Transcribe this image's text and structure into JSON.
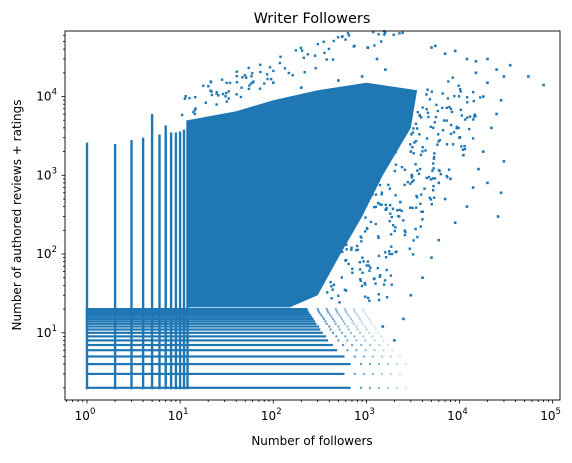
{
  "chart_data": {
    "type": "scatter",
    "title": "Writer Followers",
    "xlabel": "Number of followers",
    "ylabel": "Number of authored reviews + ratings",
    "xscale": "log",
    "yscale": "log",
    "xlim": [
      0.58,
      120000
    ],
    "ylim": [
      1.4,
      68000
    ],
    "grid": false,
    "legend": "none",
    "marker_color": "#1f77b4",
    "x_ticks": [
      {
        "value": 1,
        "base": "10",
        "exp": "0"
      },
      {
        "value": 10,
        "base": "10",
        "exp": "1"
      },
      {
        "value": 100,
        "base": "10",
        "exp": "2"
      },
      {
        "value": 1000,
        "base": "10",
        "exp": "3"
      },
      {
        "value": 10000,
        "base": "10",
        "exp": "4"
      },
      {
        "value": 100000,
        "base": "10",
        "exp": "5"
      }
    ],
    "y_ticks": [
      {
        "value": 10,
        "base": "10",
        "exp": "1"
      },
      {
        "value": 100,
        "base": "10",
        "exp": "2"
      },
      {
        "value": 1000,
        "base": "10",
        "exp": "3"
      },
      {
        "value": 10000,
        "base": "10",
        "exp": "4"
      }
    ],
    "x_columns": [
      {
        "x": 1,
        "ymax": 2600
      },
      {
        "x": 2,
        "ymax": 2500
      },
      {
        "x": 3,
        "ymax": 2800
      },
      {
        "x": 4,
        "ymax": 3000
      },
      {
        "x": 5,
        "ymax": 6000
      },
      {
        "x": 6,
        "ymax": 3300
      },
      {
        "x": 7,
        "ymax": 4300
      },
      {
        "x": 8,
        "ymax": 3500
      },
      {
        "x": 9,
        "ymax": 3500
      },
      {
        "x": 10,
        "ymax": 3600
      },
      {
        "x": 11,
        "ymax": 3800
      },
      {
        "x": 12,
        "ymax": 5000
      }
    ],
    "y_rows": [
      {
        "y": 2,
        "xmax": 700
      },
      {
        "y": 3,
        "xmax": 600
      },
      {
        "y": 4,
        "xmax": 700
      },
      {
        "y": 5,
        "xmax": 600
      },
      {
        "y": 6,
        "xmax": 500
      },
      {
        "y": 7,
        "xmax": 450
      },
      {
        "y": 8,
        "xmax": 400
      },
      {
        "y": 9,
        "xmax": 380
      },
      {
        "y": 10,
        "xmax": 350
      },
      {
        "y": 11,
        "xmax": 330
      },
      {
        "y": 12,
        "xmax": 320
      },
      {
        "y": 13,
        "xmax": 300
      },
      {
        "y": 14,
        "xmax": 290
      },
      {
        "y": 15,
        "xmax": 280
      },
      {
        "y": 16,
        "xmax": 270
      },
      {
        "y": 17,
        "xmax": 260
      },
      {
        "y": 18,
        "xmax": 250
      },
      {
        "y": 19,
        "xmax": 245
      },
      {
        "y": 20,
        "xmax": 240
      }
    ],
    "dense_region": [
      [
        12,
        21
      ],
      [
        150,
        21
      ],
      [
        300,
        30
      ],
      [
        500,
        90
      ],
      [
        900,
        300
      ],
      [
        1500,
        1000
      ],
      [
        3000,
        4000
      ],
      [
        3500,
        12000
      ],
      [
        1000,
        15000
      ],
      [
        300,
        12000
      ],
      [
        100,
        9000
      ],
      [
        40,
        6500
      ],
      [
        12,
        5000
      ]
    ],
    "outliers": [
      [
        5000,
        42000
      ],
      [
        5500,
        44000
      ],
      [
        7000,
        35000
      ],
      [
        9000,
        38000
      ],
      [
        12000,
        30000
      ],
      [
        15000,
        28000
      ],
      [
        20000,
        30000
      ],
      [
        25000,
        22000
      ],
      [
        30000,
        18000
      ],
      [
        35000,
        25000
      ],
      [
        55000,
        18000
      ],
      [
        80000,
        14000
      ],
      [
        18000,
        10000
      ],
      [
        25000,
        6000
      ],
      [
        30000,
        1500
      ],
      [
        28000,
        600
      ],
      [
        26000,
        300
      ],
      [
        20000,
        800
      ],
      [
        12000,
        400
      ],
      [
        9000,
        250
      ],
      [
        6000,
        150
      ],
      [
        5000,
        90
      ],
      [
        4000,
        50
      ],
      [
        3000,
        30
      ],
      [
        2500,
        15
      ],
      [
        2000,
        8
      ],
      [
        1500,
        12
      ],
      [
        3000,
        2000
      ],
      [
        1600,
        22000
      ],
      [
        1300,
        30000
      ],
      [
        900,
        18000
      ],
      [
        500,
        16000
      ],
      [
        200,
        13000
      ],
      [
        100,
        15000
      ],
      [
        20000,
        15000
      ],
      [
        15000,
        20000
      ],
      [
        28000,
        9000
      ],
      [
        22000,
        4000
      ],
      [
        18000,
        2000
      ],
      [
        16000,
        1200
      ],
      [
        14000,
        700
      ],
      [
        11000,
        1800
      ],
      [
        8000,
        900
      ],
      [
        7000,
        500
      ],
      [
        10000,
        3000
      ],
      [
        6000,
        800
      ]
    ]
  }
}
